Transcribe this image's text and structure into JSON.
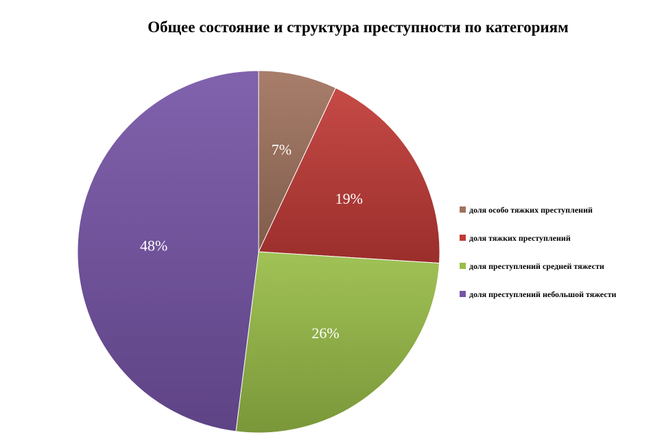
{
  "chart_data": {
    "type": "pie",
    "title": "Общее состояние и структура преступности по категориям",
    "legend_position": "right",
    "start_angle": "12 o'clock",
    "direction": "clockwise",
    "slices": [
      {
        "label": "доля особо тяжких преступлений",
        "value": 7,
        "display": "7%",
        "color": "#a0735e"
      },
      {
        "label": "доля тяжких преступлений",
        "value": 19,
        "display": "19%",
        "color": "#c13a36"
      },
      {
        "label": "доля преступлений средней тяжести",
        "value": 26,
        "display": "26%",
        "color": "#99bd47"
      },
      {
        "label": "доля преступлений небольшой тяжести",
        "value": 48,
        "display": "48%",
        "color": "#7654a6"
      }
    ]
  }
}
